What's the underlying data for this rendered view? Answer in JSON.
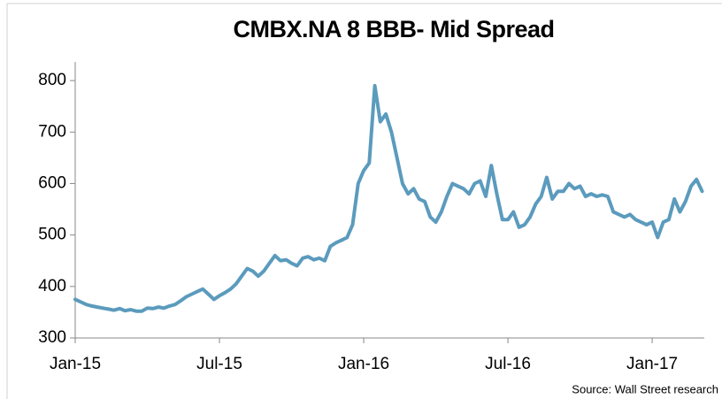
{
  "chart_data": {
    "type": "line",
    "title": "CMBX.NA 8 BBB- Mid Spread",
    "source": "Source: Wall Street research",
    "categories": [
      "Jan-15",
      null,
      null,
      null,
      null,
      null,
      null,
      null,
      null,
      null,
      null,
      null,
      null,
      null,
      null,
      null,
      null,
      null,
      null,
      null,
      null,
      null,
      null,
      null,
      null,
      null,
      "Jul-15",
      null,
      null,
      null,
      null,
      null,
      null,
      null,
      null,
      null,
      null,
      null,
      null,
      null,
      null,
      null,
      null,
      null,
      null,
      null,
      null,
      null,
      null,
      null,
      null,
      null,
      "Jan-16",
      null,
      null,
      null,
      null,
      null,
      null,
      null,
      null,
      null,
      null,
      null,
      null,
      null,
      null,
      null,
      null,
      null,
      null,
      null,
      null,
      null,
      null,
      null,
      null,
      null,
      "Jul-16",
      null,
      null,
      null,
      null,
      null,
      null,
      null,
      null,
      null,
      null,
      null,
      null,
      null,
      null,
      null,
      null,
      null,
      null,
      null,
      null,
      null,
      null,
      null,
      null,
      null,
      "Jan-17",
      null,
      null,
      null,
      null,
      null,
      null,
      null,
      null,
      null
    ],
    "series": [
      {
        "name": "CMBX.NA 8 BBB- Mid Spread",
        "color": "#5b9bbd",
        "values": [
          375,
          370,
          365,
          362,
          360,
          358,
          356,
          354,
          357,
          353,
          355,
          352,
          352,
          358,
          357,
          360,
          358,
          362,
          365,
          372,
          380,
          385,
          390,
          395,
          385,
          375,
          382,
          388,
          395,
          405,
          420,
          435,
          430,
          420,
          430,
          445,
          460,
          450,
          452,
          445,
          440,
          455,
          458,
          452,
          455,
          450,
          478,
          485,
          490,
          495,
          520,
          600,
          625,
          640,
          790,
          720,
          735,
          700,
          650,
          600,
          580,
          590,
          570,
          565,
          535,
          525,
          545,
          575,
          600,
          595,
          590,
          580,
          600,
          605,
          575,
          635,
          580,
          530,
          530,
          545,
          515,
          520,
          535,
          560,
          575,
          612,
          570,
          585,
          585,
          600,
          590,
          595,
          575,
          580,
          575,
          578,
          575,
          545,
          540,
          535,
          540,
          530,
          525,
          520,
          525,
          495,
          525,
          530,
          570,
          545,
          565,
          595,
          608,
          585
        ]
      }
    ],
    "ylim": [
      300,
      850
    ],
    "yticks": [
      300,
      400,
      500,
      600,
      700,
      800
    ]
  }
}
